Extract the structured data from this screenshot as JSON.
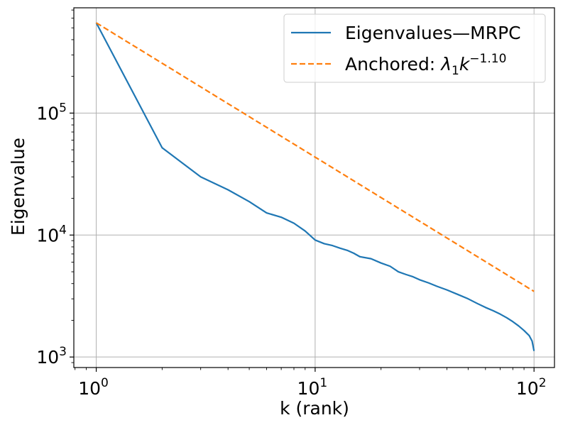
{
  "chart_data": {
    "type": "line",
    "xscale": "log",
    "yscale": "log",
    "xlabel": "k (rank)",
    "ylabel": "Eigenvalue",
    "xlim": [
      0.79,
      124
    ],
    "ylim": [
      820,
      730000
    ],
    "grid": true,
    "legend_position": "upper-right",
    "xticks": [
      {
        "base": "10",
        "exp": "0",
        "value": 1
      },
      {
        "base": "10",
        "exp": "1",
        "value": 10
      },
      {
        "base": "10",
        "exp": "2",
        "value": 100
      }
    ],
    "yticks": [
      {
        "base": "10",
        "exp": "3",
        "value": 1000
      },
      {
        "base": "10",
        "exp": "4",
        "value": 10000
      },
      {
        "base": "10",
        "exp": "5",
        "value": 100000
      }
    ],
    "series": [
      {
        "name": "Eigenvalues—MRPC",
        "color": "#1f77b4",
        "style": "solid",
        "points": [
          [
            1,
            550000
          ],
          [
            2,
            52000
          ],
          [
            3,
            30000
          ],
          [
            4,
            23500
          ],
          [
            5,
            18800
          ],
          [
            6,
            15200
          ],
          [
            7,
            14000
          ],
          [
            8,
            12500
          ],
          [
            9,
            10800
          ],
          [
            10,
            9100
          ],
          [
            11,
            8500
          ],
          [
            12,
            8200
          ],
          [
            13,
            7800
          ],
          [
            14,
            7500
          ],
          [
            15,
            7100
          ],
          [
            16,
            6650
          ],
          [
            18,
            6400
          ],
          [
            20,
            5900
          ],
          [
            22,
            5550
          ],
          [
            24,
            5000
          ],
          [
            26,
            4750
          ],
          [
            28,
            4550
          ],
          [
            30,
            4300
          ],
          [
            33,
            4050
          ],
          [
            36,
            3800
          ],
          [
            40,
            3550
          ],
          [
            45,
            3250
          ],
          [
            50,
            3000
          ],
          [
            55,
            2750
          ],
          [
            60,
            2550
          ],
          [
            65,
            2400
          ],
          [
            70,
            2250
          ],
          [
            75,
            2100
          ],
          [
            80,
            1950
          ],
          [
            85,
            1800
          ],
          [
            90,
            1650
          ],
          [
            95,
            1500
          ],
          [
            98,
            1350
          ],
          [
            100,
            1120
          ]
        ]
      },
      {
        "name": "Anchored: ",
        "name_math": {
          "lambda": "λ",
          "sub": "1",
          "k": "k",
          "sup": "−1.10"
        },
        "color": "#ff7f0e",
        "style": "dashed",
        "points": [
          [
            1,
            550000
          ],
          [
            100,
            3450
          ]
        ]
      }
    ]
  }
}
